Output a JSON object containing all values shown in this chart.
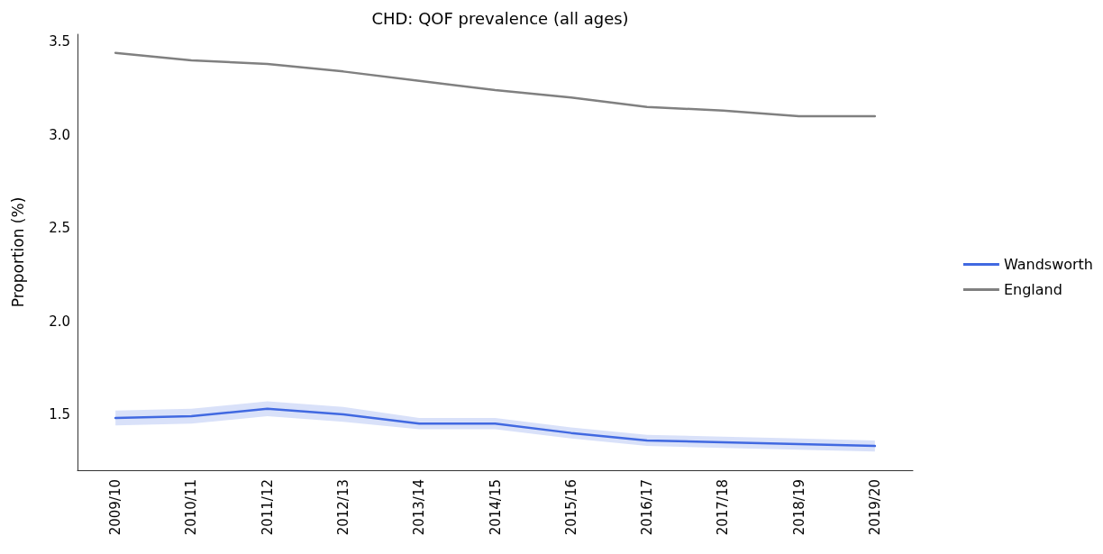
{
  "chart_data": {
    "type": "line",
    "title": "CHD: QOF prevalence (all ages)",
    "ylabel": "Proportion (%)",
    "categories": [
      "2009/10",
      "2010/11",
      "2011/12",
      "2012/13",
      "2013/14",
      "2014/15",
      "2015/16",
      "2016/17",
      "2017/18",
      "2018/19",
      "2019/20"
    ],
    "series": [
      {
        "name": "Wandsworth",
        "color": "#4169e1",
        "values": [
          1.48,
          1.49,
          1.53,
          1.5,
          1.45,
          1.45,
          1.4,
          1.36,
          1.35,
          1.34,
          1.33
        ],
        "lower": [
          1.44,
          1.45,
          1.49,
          1.46,
          1.42,
          1.42,
          1.37,
          1.33,
          1.32,
          1.31,
          1.3
        ],
        "upper": [
          1.52,
          1.53,
          1.57,
          1.54,
          1.48,
          1.48,
          1.43,
          1.39,
          1.38,
          1.37,
          1.36
        ]
      },
      {
        "name": "England",
        "color": "#808080",
        "values": [
          3.44,
          3.4,
          3.38,
          3.34,
          3.29,
          3.24,
          3.2,
          3.15,
          3.13,
          3.1,
          3.1
        ]
      }
    ],
    "ylim": [
      1.2,
      3.54
    ],
    "yticks": [
      1.5,
      {
        "value": 2,
        "label": "2.0"
      },
      2.5,
      {
        "value": 3,
        "label": "3.0"
      },
      3.5
    ],
    "grid": false,
    "legend": "right",
    "marker": "none",
    "line_style": "solid"
  }
}
